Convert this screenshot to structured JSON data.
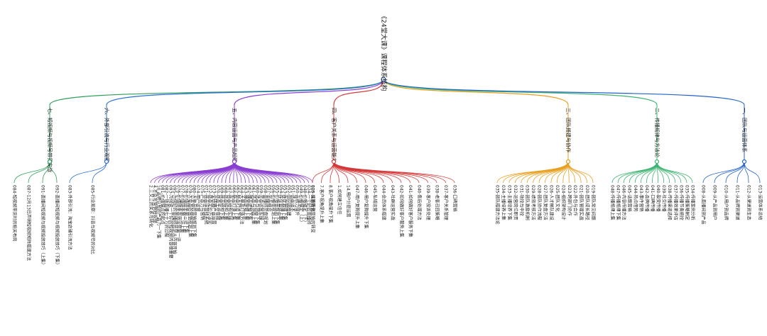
{
  "root": {
    "label": "《24堂大课》课程体系结构"
  },
  "branches": [
    {
      "label": "七、短视频与视频号带货实战",
      "color": "#2e9e5b",
      "leaves": [
        "084-短视频带货时的相关布局",
        "087-12月13日声明短视频矩阵搭建方法",
        "091-直播间短视频与视频投放技巧（上集）",
        "092-直播间短视频与视频投放技巧（下集）"
      ]
    },
    {
      "label": "六、外部引流与行业观察",
      "color": "#2b6fd6",
      "leaves": [
        "083-外部引流：淘宝店铺引流方法",
        "085-行业观察：抖音与视频号的对比"
      ]
    },
    {
      "label": "五、内容运营与产品起爆",
      "color": "#8a3fd1",
      "leaves": [
        "2.三又三的关系与转化",
        "4.不会写营销短视频",
        "10.品牌认知的产品力一下集",
        "081-价值锚点的起点",
        "082-一场直播七十万的过程",
        "093-为何说一个好的短视频内容很重要",
        "095-为何好的直播间总是从内容开始",
        "076-价值链条高效运营第一讲",
        "077-价值链条第二讲上集",
        "078-价值链条第三讲下集",
        "079-大单品的营销规划上集",
        "080-大单品的营销规划下集",
        "074-用户运营",
        "075-产品力与营销",
        "071-商品运营线系统",
        "072-商品定价方法论",
        "073-全链路产品运营",
        "070-商品生命周期",
        "069-商品结构下集",
        "068-商品结构上集",
        "067-商品结构实操",
        "066-新品打造上集",
        "065-新品打造下集",
        "064-大单品打造方法",
        "063-爆品逻辑上集",
        "062-爆品逻辑下集",
        "061-选品与测品上集",
        "060-选品与测品下集",
        "059-货品运营实操",
        "058-直播间货盘规划",
        "057-货品组合",
        "056-价格带规划上集",
        "055-价格带规划下集",
        "054-库存管理上集",
        "053-库存管理下集",
        "052-供应链搭建",
        "051-选品话术",
        "050-品牌力提升",
        "049-价格锚定（上）",
        "048-价格锚定（下）",
        "024-一个好的直播间",
        "025-提高转化"
      ]
    },
    {
      "label": "四、客户关系与运营能力",
      "color": "#d43a3a",
      "leaves": [
        "100-从销售到营销的转变",
        "7.客户视角提升上集",
        "8.客户视角提升下集",
        "1.如何建立信任",
        "14.用户分层运营",
        "047-用户复购提升上集",
        "046-用户复购提升下集",
        "045-私域运营",
        "044-会员体系搭建",
        "043-社群运营实战",
        "042-如何做好客户服务上集",
        "041-如何做好客户服务下集",
        "040-售后处理方法",
        "039-客户投诉处理",
        "038-老客召回策略",
        "037-客户关系管理",
        "036-口碑营销"
      ]
    },
    {
      "label": "三、团队搭建与协作",
      "color": "#e8a020",
      "leaves": [
        "035-团队搭建方法论",
        "034-主播培养上集",
        "033-主播培养下集",
        "032-运营岗位职责",
        "031-场控与中控",
        "030-团队激励机制",
        "029-绩效考核方法",
        "028-团队协作流程",
        "027-团队复盘方法",
        "026-人才梯队建设",
        "025-团队文化",
        "024-组织架构设计",
        "023-跨部门协作",
        "022-外包与合作",
        "021-团队管理实战",
        "020-团队成长路径",
        "019-团队常见问题"
      ]
    },
    {
      "label": "二、传播规律与方法论",
      "color": "#3cb371",
      "leaves": [
        "048-传播规律上集",
        "047-传播规律下集",
        "046-内容传播方法",
        "045-话题营销",
        "044-热点借势",
        "043-事件营销",
        "042-品牌传播",
        "041-口碑传播",
        "040-裂变传播",
        "039-社交传播",
        "038-传播渠道选择",
        "037-传播效果评估",
        "036-传播节奏把控",
        "035-传播策略制定",
        "034-传播案例分析"
      ]
    },
    {
      "label": "一、团队与运营体系",
      "color": "#2563c8",
      "leaves": [
        "008-从直播间到产品",
        "009-从产品到用户",
        "010-从用户到品牌",
        "011-从品牌到渠道",
        "012-从渠道到生态",
        "013-运营体系总结"
      ]
    }
  ]
}
